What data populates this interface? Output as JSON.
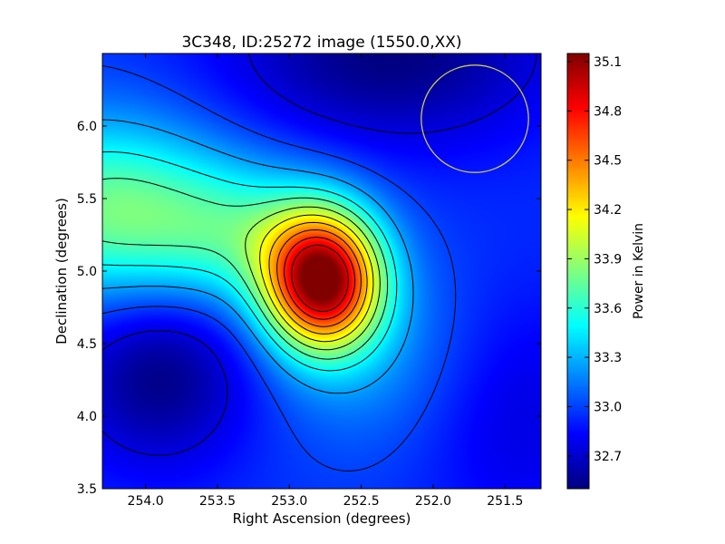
{
  "chart_data": {
    "type": "heatmap",
    "title": "3C348, ID:25272 image (1550.0,XX)",
    "xlabel": "Right Ascension (degrees)",
    "ylabel": "Declination (degrees)",
    "xlim": [
      254.3,
      251.25
    ],
    "ylim": [
      3.5,
      6.5
    ],
    "x_ticks": [
      254.0,
      253.5,
      253.0,
      252.5,
      252.0,
      251.5
    ],
    "x_tick_labels": [
      "254.0",
      "253.5",
      "253.0",
      "252.5",
      "252.0",
      "251.5"
    ],
    "y_ticks": [
      3.5,
      4.0,
      4.5,
      5.0,
      5.5,
      6.0
    ],
    "y_tick_labels": [
      "3.5",
      "4.0",
      "4.5",
      "5.0",
      "5.5",
      "6.0"
    ],
    "colormap": "jet",
    "colorbar": {
      "label": "Power in Kelvin",
      "range": [
        32.5,
        35.15
      ],
      "ticks": [
        32.7,
        33.0,
        33.3,
        33.6,
        33.9,
        34.2,
        34.5,
        34.8,
        35.1
      ],
      "tick_labels": [
        "32.7",
        "33.0",
        "33.3",
        "33.6",
        "33.9",
        "34.2",
        "34.5",
        "34.8",
        "35.1"
      ]
    },
    "contour_levels": [
      32.75,
      33.0,
      33.25,
      33.5,
      33.7,
      33.9,
      34.1,
      34.3,
      34.5,
      34.7,
      34.9
    ],
    "contour_color": "#000000",
    "peak": {
      "ra": 252.77,
      "dec": 4.93,
      "value": 35.1
    },
    "beam_circle": {
      "ra": 251.71,
      "dec": 6.05,
      "radius_deg": 0.37,
      "color": "#c8c850"
    },
    "field_components": [
      {
        "ra": 252.77,
        "dec": 4.93,
        "amplitude": 2.05,
        "sigma_ra": 0.28,
        "sigma_dec": 0.33
      },
      {
        "ra": 254.3,
        "dec": 5.42,
        "amplitude": 0.8,
        "sigma_ra": 0.6,
        "sigma_dec": 0.45
      },
      {
        "ra": 253.3,
        "dec": 5.25,
        "amplitude": 0.55,
        "sigma_ra": 0.5,
        "sigma_dec": 0.35
      },
      {
        "ra": 252.45,
        "dec": 4.45,
        "amplitude": 0.25,
        "sigma_ra": 0.5,
        "sigma_dec": 0.5
      },
      {
        "ra": 253.9,
        "dec": 4.3,
        "amplitude": -0.45,
        "sigma_ra": 0.45,
        "sigma_dec": 0.45
      },
      {
        "ra": 252.3,
        "dec": 6.5,
        "amplitude": -0.45,
        "sigma_ra": 0.8,
        "sigma_dec": 0.45
      },
      {
        "ra": 251.4,
        "dec": 4.0,
        "amplitude": -0.2,
        "sigma_ra": 0.5,
        "sigma_dec": 0.6
      }
    ],
    "background_level": 32.95
  }
}
